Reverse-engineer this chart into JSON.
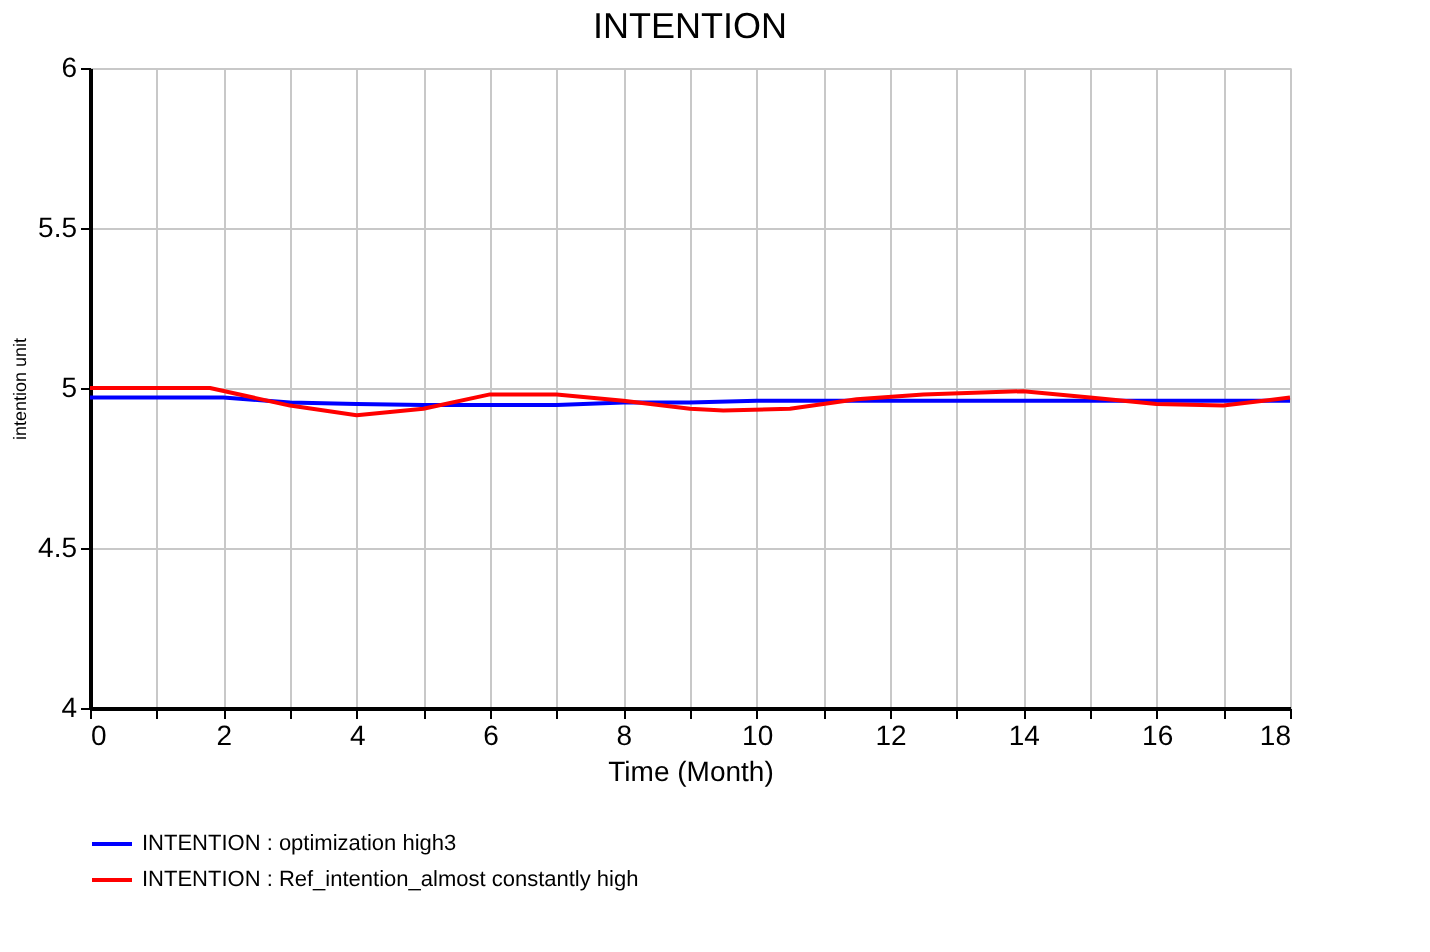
{
  "chart_data": {
    "type": "line",
    "title": "INTENTION",
    "xlabel": "Time (Month)",
    "ylabel": "intention unit",
    "xlim": [
      0,
      18
    ],
    "ylim": [
      4,
      6
    ],
    "xticks": [
      0,
      {
        "value": 1,
        "label": null
      },
      2,
      {
        "value": 3,
        "label": null
      },
      4,
      {
        "value": 5,
        "label": null
      },
      6,
      {
        "value": 7,
        "label": null
      },
      8,
      {
        "value": 9,
        "label": null
      },
      10,
      {
        "value": 11,
        "label": null
      },
      12,
      {
        "value": 13,
        "label": null
      },
      14,
      {
        "value": 15,
        "label": null
      },
      16,
      {
        "value": 17,
        "label": null
      },
      18
    ],
    "yticks": [
      4,
      4.5,
      5,
      5.5,
      6
    ],
    "grid": true,
    "legend": "bottom",
    "marker": "none",
    "line_style": "solid",
    "series": [
      {
        "name": "INTENTION : optimization high3",
        "color": "#0000ff",
        "x": [
          0,
          1,
          2,
          3,
          4,
          5,
          6,
          7,
          8,
          9,
          10,
          11,
          12,
          13,
          14,
          15,
          16,
          17,
          18
        ],
        "values": [
          4.97,
          4.97,
          4.97,
          4.955,
          4.95,
          4.947,
          4.947,
          4.947,
          4.955,
          4.955,
          4.96,
          4.96,
          4.96,
          4.96,
          4.96,
          4.96,
          4.96,
          4.96,
          4.96
        ]
      },
      {
        "name": "INTENTION : Ref_intention_almost constantly high",
        "color": "#ff0000",
        "x": [
          0,
          1,
          1.8,
          3,
          4,
          5,
          6,
          7,
          8,
          9,
          9.5,
          10.5,
          11,
          11.5,
          12.5,
          14,
          15,
          16,
          17,
          18
        ],
        "values": [
          5.0,
          5.0,
          5.0,
          4.945,
          4.915,
          4.935,
          4.98,
          4.98,
          4.96,
          4.935,
          4.93,
          4.935,
          4.95,
          4.965,
          4.98,
          4.99,
          4.97,
          4.95,
          4.945,
          4.97
        ]
      }
    ]
  }
}
